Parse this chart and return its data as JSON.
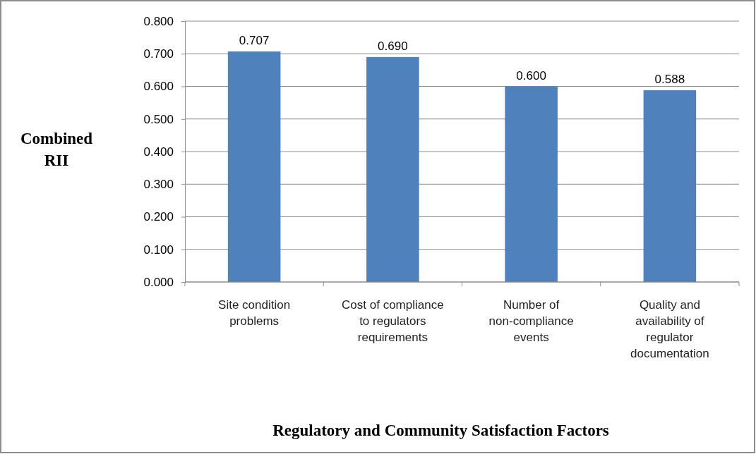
{
  "chart_data": {
    "type": "bar",
    "xlabel": "Regulatory and Community Satisfaction Factors",
    "ylabel": "Combined RII",
    "categories": [
      "Site condition problems",
      "Cost of compliance to regulators requirements",
      "Number of non-compliance events",
      "Quality and availability of regulator documentation"
    ],
    "values": [
      0.707,
      0.69,
      0.6,
      0.588
    ],
    "value_labels": [
      "0.707",
      "0.690",
      "0.600",
      "0.588"
    ],
    "color": "#4f81bd",
    "ylim": [
      0,
      0.8
    ],
    "yticks": [
      {
        "value": 0,
        "label": "0.000"
      },
      {
        "value": 0.1,
        "label": "0.100"
      },
      {
        "value": 0.2,
        "label": "0.200"
      },
      {
        "value": 0.3,
        "label": "0.300"
      },
      {
        "value": 0.4,
        "label": "0.400"
      },
      {
        "value": 0.5,
        "label": "0.500"
      },
      {
        "value": 0.6,
        "label": "0.600"
      },
      {
        "value": 0.7,
        "label": "0.700"
      },
      {
        "value": 0.8,
        "label": "0.800"
      }
    ],
    "grid": "y"
  }
}
